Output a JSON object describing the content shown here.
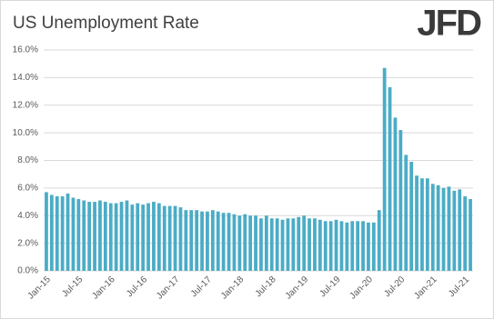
{
  "chart_data": {
    "type": "bar",
    "title": "US Unemployment Rate",
    "logo": "JFD",
    "categories": [
      "Jan-15",
      null,
      null,
      null,
      null,
      null,
      "Jul-15",
      null,
      null,
      null,
      null,
      null,
      "Jan-16",
      null,
      null,
      null,
      null,
      null,
      "Jul-16",
      null,
      null,
      null,
      null,
      null,
      "Jan-17",
      null,
      null,
      null,
      null,
      null,
      "Jul-17",
      null,
      null,
      null,
      null,
      null,
      "Jan-18",
      null,
      null,
      null,
      null,
      null,
      "Jul-18",
      null,
      null,
      null,
      null,
      null,
      "Jan-19",
      null,
      null,
      null,
      null,
      null,
      "Jul-19",
      null,
      null,
      null,
      null,
      null,
      "Jan-20",
      null,
      null,
      null,
      null,
      null,
      "Jul-20",
      null,
      null,
      null,
      null,
      null,
      "Jan-21",
      null,
      null,
      null,
      null,
      null,
      "Jul-21",
      null
    ],
    "values": [
      5.7,
      5.5,
      5.4,
      5.4,
      5.6,
      5.3,
      5.2,
      5.1,
      5.0,
      5.0,
      5.1,
      5.0,
      4.9,
      4.9,
      5.0,
      5.1,
      4.8,
      4.9,
      4.8,
      4.9,
      5.0,
      4.9,
      4.7,
      4.7,
      4.7,
      4.6,
      4.4,
      4.4,
      4.4,
      4.3,
      4.3,
      4.4,
      4.3,
      4.2,
      4.2,
      4.1,
      4.0,
      4.1,
      4.0,
      4.0,
      3.8,
      4.0,
      3.8,
      3.8,
      3.7,
      3.8,
      3.8,
      3.9,
      4.0,
      3.8,
      3.8,
      3.7,
      3.6,
      3.6,
      3.7,
      3.6,
      3.5,
      3.6,
      3.6,
      3.6,
      3.5,
      3.5,
      4.4,
      14.7,
      13.3,
      11.1,
      10.2,
      8.4,
      7.9,
      6.9,
      6.7,
      6.7,
      6.3,
      6.2,
      6.0,
      6.1,
      5.8,
      5.9,
      5.4,
      5.2
    ],
    "color": "#4bacc6",
    "ylim": [
      0,
      16
    ],
    "yticks": [
      {
        "value": 0,
        "label": "0.0%"
      },
      {
        "value": 2,
        "label": "2.0%"
      },
      {
        "value": 4,
        "label": "4.0%"
      },
      {
        "value": 6,
        "label": "6.0%"
      },
      {
        "value": 8,
        "label": "8.0%"
      },
      {
        "value": 10,
        "label": "10.0%"
      },
      {
        "value": 12,
        "label": "12.0%"
      },
      {
        "value": 14,
        "label": "14.0%"
      },
      {
        "value": 16,
        "label": "16.0%"
      }
    ],
    "grid": true
  }
}
